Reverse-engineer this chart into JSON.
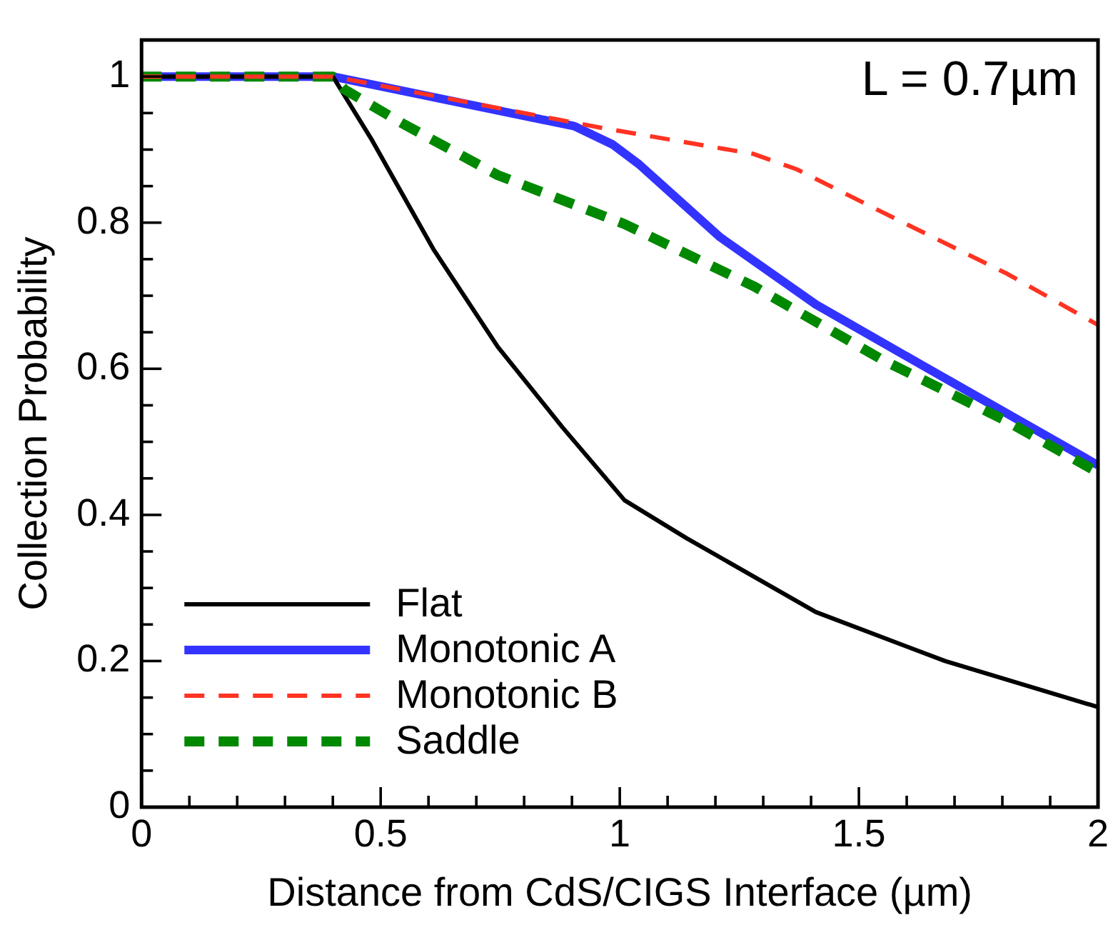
{
  "chart_data": {
    "type": "line",
    "xlabel": "Distance from CdS/CIGS Interface (µm)",
    "ylabel": "Collection Probability",
    "annotations": [
      "L = 0.7µm"
    ],
    "xlim": [
      0,
      2
    ],
    "ylim": [
      0,
      1.05
    ],
    "xticks": [
      0,
      {
        "value": 0.1,
        "label": null
      },
      {
        "value": 0.2,
        "label": null
      },
      {
        "value": 0.3,
        "label": null
      },
      {
        "value": 0.4,
        "label": null
      },
      0.5,
      {
        "value": 0.6,
        "label": null
      },
      {
        "value": 0.7,
        "label": null
      },
      {
        "value": 0.8,
        "label": null
      },
      {
        "value": 0.9,
        "label": null
      },
      1,
      {
        "value": 1.1,
        "label": null
      },
      {
        "value": 1.2,
        "label": null
      },
      {
        "value": 1.3,
        "label": null
      },
      {
        "value": 1.4,
        "label": null
      },
      1.5,
      {
        "value": 1.6,
        "label": null
      },
      {
        "value": 1.7,
        "label": null
      },
      {
        "value": 1.8,
        "label": null
      },
      {
        "value": 1.9,
        "label": null
      },
      2
    ],
    "yticks": [
      0,
      {
        "value": 0.05,
        "label": null
      },
      {
        "value": 0.1,
        "label": null
      },
      {
        "value": 0.15,
        "label": null
      },
      0.2,
      {
        "value": 0.25,
        "label": null
      },
      {
        "value": 0.3,
        "label": null
      },
      {
        "value": 0.35,
        "label": null
      },
      0.4,
      {
        "value": 0.45,
        "label": null
      },
      {
        "value": 0.5,
        "label": null
      },
      {
        "value": 0.55,
        "label": null
      },
      0.6,
      {
        "value": 0.65,
        "label": null
      },
      {
        "value": 0.7,
        "label": null
      },
      {
        "value": 0.75,
        "label": null
      },
      0.8,
      {
        "value": 0.85,
        "label": null
      },
      {
        "value": 0.9,
        "label": null
      },
      {
        "value": 0.95,
        "label": null
      },
      1
    ],
    "grid": false,
    "legend": "bottom left",
    "marker": "none",
    "series": [
      {
        "name": "Flat",
        "color": "#000000",
        "line_style": "solid",
        "x": [
          0,
          0.4,
          0.48,
          0.61,
          0.745,
          0.88,
          1.01,
          1.14,
          1.41,
          1.68,
          2
        ],
        "values": [
          1,
          1,
          0.915,
          0.764,
          0.63,
          0.52,
          0.42,
          0.368,
          0.267,
          0.2,
          0.137
        ]
      },
      {
        "name": "Monotonic A",
        "color": "#3333ff",
        "line_style": "solid",
        "x": [
          0,
          0.4,
          0.905,
          0.985,
          1.04,
          1.21,
          1.41,
          1.68,
          2
        ],
        "values": [
          1,
          1,
          0.932,
          0.907,
          0.88,
          0.78,
          0.688,
          0.587,
          0.468
        ]
      },
      {
        "name": "Monotonic B",
        "color": "#ff3322",
        "line_style": "dashed",
        "x": [
          0,
          0.4,
          0.96,
          1.28,
          1.37,
          1.55,
          1.81,
          2
        ],
        "values": [
          1,
          1,
          0.93,
          0.894,
          0.873,
          0.814,
          0.73,
          0.66
        ]
      },
      {
        "name": "Saddle",
        "color": "#008800",
        "line_style": "dashed",
        "x": [
          0,
          0.4,
          0.425,
          0.545,
          0.745,
          1.01,
          1.28,
          1.55,
          1.81,
          2
        ],
        "values": [
          1,
          1,
          0.982,
          0.936,
          0.865,
          0.798,
          0.713,
          0.612,
          0.528,
          0.458
        ]
      }
    ]
  }
}
